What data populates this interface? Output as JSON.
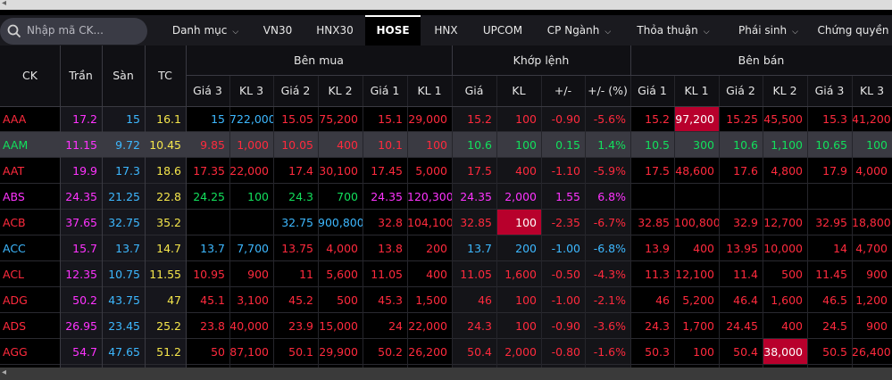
{
  "search": {
    "placeholder": "Nhập mã CK..."
  },
  "tabs": [
    {
      "label": "Danh mục",
      "dropdown": true
    },
    {
      "label": "VN30",
      "dropdown": false
    },
    {
      "label": "HNX30",
      "dropdown": false
    },
    {
      "label": "HOSE",
      "dropdown": false,
      "active": true
    },
    {
      "label": "HNX",
      "dropdown": false
    },
    {
      "label": "UPCOM",
      "dropdown": false
    },
    {
      "label": "CP Ngành",
      "dropdown": true
    },
    {
      "label": "Thỏa thuận",
      "dropdown": true
    },
    {
      "label": "Phái sinh",
      "dropdown": true
    },
    {
      "label": "Chứng quyền",
      "dropdown": false
    }
  ],
  "headers": {
    "ck": "CK",
    "tran": "Trần",
    "san": "Sàn",
    "tc": "TC",
    "ben_mua": "Bên mua",
    "khop_lenh": "Khớp lệnh",
    "ben_ban": "Bên bán",
    "sub": [
      "Giá 3",
      "KL 3",
      "Giá 2",
      "KL 2",
      "Giá 1",
      "KL 1",
      "Giá",
      "KL",
      "+/-",
      "+/- (%)",
      "Giá 1",
      "KL 1",
      "Giá 2",
      "KL 2",
      "Giá 3",
      "KL 3"
    ]
  },
  "colors": {
    "up": "#12e05c",
    "down": "#ff2a3d",
    "ceiling": "#ff33ff",
    "floor": "#3db8ff",
    "ref": "#f5e64b",
    "highlight": "#b8002c"
  },
  "rows": [
    {
      "ck": "AAA",
      "tran": "17.2",
      "san": "15",
      "tc": "16.1",
      "buy": [
        "15",
        "722,000",
        "15.05",
        "75,200",
        "15.1",
        "29,000"
      ],
      "match": [
        "15.2",
        "100",
        "-0.90",
        "-5.6%"
      ],
      "sell": [
        "15.2",
        "97,200",
        "15.25",
        "45,500",
        "15.3",
        "41,200"
      ]
    },
    {
      "ck": "AAM",
      "tran": "11.15",
      "san": "9.72",
      "tc": "10.45",
      "buy": [
        "9.85",
        "1,000",
        "10.05",
        "400",
        "10.1",
        "100"
      ],
      "match": [
        "10.6",
        "100",
        "0.15",
        "1.4%"
      ],
      "sell": [
        "10.5",
        "300",
        "10.6",
        "1,100",
        "10.65",
        "100"
      ]
    },
    {
      "ck": "AAT",
      "tran": "19.9",
      "san": "17.3",
      "tc": "18.6",
      "buy": [
        "17.35",
        "22,000",
        "17.4",
        "30,100",
        "17.45",
        "5,000"
      ],
      "match": [
        "17.5",
        "400",
        "-1.10",
        "-5.9%"
      ],
      "sell": [
        "17.5",
        "48,600",
        "17.6",
        "4,800",
        "17.9",
        "4,000"
      ]
    },
    {
      "ck": "ABS",
      "tran": "24.35",
      "san": "21.25",
      "tc": "22.8",
      "buy": [
        "24.25",
        "100",
        "24.3",
        "700",
        "24.35",
        "120,300"
      ],
      "match": [
        "24.35",
        "2,000",
        "1.55",
        "6.8%"
      ],
      "sell": [
        "",
        "",
        "",
        "",
        "",
        ""
      ]
    },
    {
      "ck": "ACB",
      "tran": "37.65",
      "san": "32.75",
      "tc": "35.2",
      "buy": [
        "",
        "",
        "32.75",
        "900,800",
        "32.8",
        "104,100"
      ],
      "match": [
        "32.85",
        "100",
        "-2.35",
        "-6.7%"
      ],
      "sell": [
        "32.85",
        "100,800",
        "32.9",
        "12,700",
        "32.95",
        "18,800"
      ]
    },
    {
      "ck": "ACC",
      "tran": "15.7",
      "san": "13.7",
      "tc": "14.7",
      "buy": [
        "13.7",
        "7,700",
        "13.75",
        "4,000",
        "13.8",
        "200"
      ],
      "match": [
        "13.7",
        "200",
        "-1.00",
        "-6.8%"
      ],
      "sell": [
        "13.9",
        "400",
        "13.95",
        "10,000",
        "14",
        "4,700"
      ]
    },
    {
      "ck": "ACL",
      "tran": "12.35",
      "san": "10.75",
      "tc": "11.55",
      "buy": [
        "10.95",
        "900",
        "11",
        "5,600",
        "11.05",
        "400"
      ],
      "match": [
        "11.05",
        "1,600",
        "-0.50",
        "-4.3%"
      ],
      "sell": [
        "11.3",
        "12,100",
        "11.4",
        "500",
        "11.45",
        "900"
      ]
    },
    {
      "ck": "ADG",
      "tran": "50.2",
      "san": "43.75",
      "tc": "47",
      "buy": [
        "45.1",
        "3,100",
        "45.2",
        "500",
        "45.3",
        "1,500"
      ],
      "match": [
        "46",
        "100",
        "-1.00",
        "-2.1%"
      ],
      "sell": [
        "46",
        "5,200",
        "46.4",
        "1,600",
        "46.5",
        "1,200"
      ]
    },
    {
      "ck": "ADS",
      "tran": "26.95",
      "san": "23.45",
      "tc": "25.2",
      "buy": [
        "23.8",
        "40,000",
        "23.9",
        "15,000",
        "24",
        "22,000"
      ],
      "match": [
        "24.3",
        "100",
        "-0.90",
        "-3.6%"
      ],
      "sell": [
        "24.3",
        "1,700",
        "24.45",
        "400",
        "24.5",
        "900"
      ]
    },
    {
      "ck": "AGG",
      "tran": "54.7",
      "san": "47.65",
      "tc": "51.2",
      "buy": [
        "50",
        "87,100",
        "50.1",
        "29,900",
        "50.2",
        "26,200"
      ],
      "match": [
        "50.4",
        "2,000",
        "-0.80",
        "-1.6%"
      ],
      "sell": [
        "50.3",
        "100",
        "50.4",
        "38,000",
        "50.5",
        "26,400"
      ]
    }
  ]
}
